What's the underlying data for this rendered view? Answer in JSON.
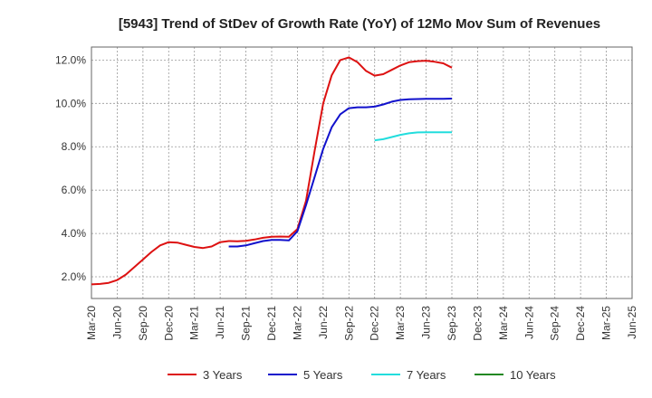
{
  "chart_data": {
    "type": "line",
    "title": "[5943]  Trend of StDev of Growth Rate (YoY) of 12Mo Mov Sum of Revenues",
    "xlabel": "",
    "ylabel": "",
    "ylim": [
      1.0,
      12.6
    ],
    "y_ticks": [
      2.0,
      4.0,
      6.0,
      8.0,
      10.0,
      12.0
    ],
    "y_tick_labels": [
      "2.0%",
      "4.0%",
      "6.0%",
      "8.0%",
      "10.0%",
      "12.0%"
    ],
    "x_tick_labels": [
      "Mar-20",
      "Jun-20",
      "Sep-20",
      "Dec-20",
      "Mar-21",
      "Jun-21",
      "Sep-21",
      "Dec-21",
      "Mar-22",
      "Jun-22",
      "Sep-22",
      "Dec-22",
      "Mar-23",
      "Jun-23",
      "Sep-23",
      "Dec-23",
      "Mar-24",
      "Jun-24",
      "Sep-24",
      "Dec-24",
      "Mar-25",
      "Jun-25"
    ],
    "grid": true,
    "legend_position": "bottom",
    "series": [
      {
        "name": "3 Years",
        "color": "#dd1111",
        "values": [
          1.65,
          1.67,
          1.72,
          1.85,
          2.1,
          2.45,
          2.8,
          3.15,
          3.45,
          3.6,
          3.58,
          3.48,
          3.38,
          3.33,
          3.4,
          3.6,
          3.65,
          3.64,
          3.66,
          3.72,
          3.8,
          3.85,
          3.86,
          3.85,
          4.2,
          5.5,
          7.8,
          10.0,
          11.3,
          12.0,
          12.12,
          11.9,
          11.5,
          11.28,
          11.35,
          11.55,
          11.75,
          11.9,
          11.95,
          11.97,
          11.92,
          11.85,
          11.65
        ]
      },
      {
        "name": "5 Years",
        "color": "#1111cc",
        "values": [
          null,
          null,
          null,
          null,
          null,
          null,
          null,
          null,
          null,
          null,
          null,
          null,
          null,
          null,
          null,
          null,
          3.4,
          3.4,
          3.45,
          3.55,
          3.65,
          3.7,
          3.7,
          3.68,
          4.1,
          5.3,
          6.6,
          7.9,
          8.9,
          9.5,
          9.78,
          9.82,
          9.82,
          9.85,
          9.95,
          10.08,
          10.16,
          10.19,
          10.2,
          10.21,
          10.21,
          10.21,
          10.22
        ]
      },
      {
        "name": "7 Years",
        "color": "#22dddd",
        "values": [
          null,
          null,
          null,
          null,
          null,
          null,
          null,
          null,
          null,
          null,
          null,
          null,
          null,
          null,
          null,
          null,
          null,
          null,
          null,
          null,
          null,
          null,
          null,
          null,
          null,
          null,
          null,
          null,
          null,
          null,
          null,
          null,
          null,
          8.3,
          8.35,
          8.45,
          8.55,
          8.62,
          8.66,
          8.67,
          8.67,
          8.67,
          8.67
        ]
      },
      {
        "name": "10 Years",
        "color": "#228822",
        "values": []
      }
    ]
  }
}
